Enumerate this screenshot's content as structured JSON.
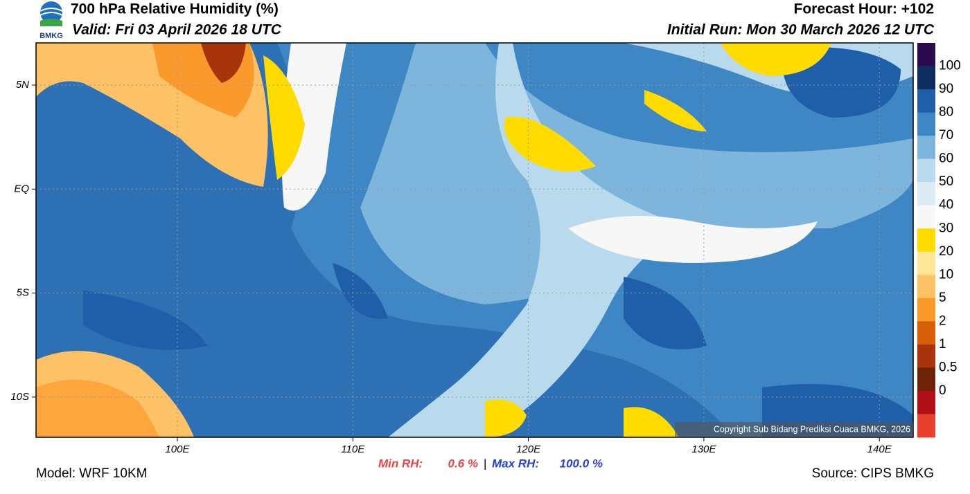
{
  "header": {
    "logo": "BMKG",
    "title": "700 hPa Relative Humidity (%)",
    "valid": "Valid: Fri 03 April 2026 18 UTC",
    "forecast_hour": "Forecast Hour: +102",
    "initial_run": "Initial Run: Mon 30 March 2026 12 UTC"
  },
  "map": {
    "lat_labels": [
      "5N",
      "EQ",
      "5S",
      "10S"
    ],
    "lon_labels": [
      "100E",
      "110E",
      "120E",
      "130E",
      "140E"
    ],
    "copyright": "Copyright Sub Bidang Prediksi Cuaca BMKG, 2026"
  },
  "colorbar": {
    "labels": [
      "100",
      "90",
      "80",
      "70",
      "60",
      "50",
      "40",
      "30",
      "20",
      "10",
      "5",
      "2",
      "1",
      "0.5",
      "0"
    ],
    "colors": [
      "#2a0a4a",
      "#0d2d5e",
      "#1f5ea8",
      "#3f86c4",
      "#7db5dc",
      "#b9d9ec",
      "#dcebf4",
      "#f7f7f7",
      "#ffdc00",
      "#ffe79a",
      "#fdc166",
      "#fb9a2c",
      "#d85f0a",
      "#a8340c",
      "#6e2308",
      "#b01018",
      "#e8402e"
    ]
  },
  "footer": {
    "model": "Model: WRF 10KM",
    "min_label": "Min RH:",
    "min_value": "0.6 %",
    "separator": "|",
    "max_label": "Max RH:",
    "max_value": "100.0 %",
    "source": "Source: CIPS BMKG"
  }
}
